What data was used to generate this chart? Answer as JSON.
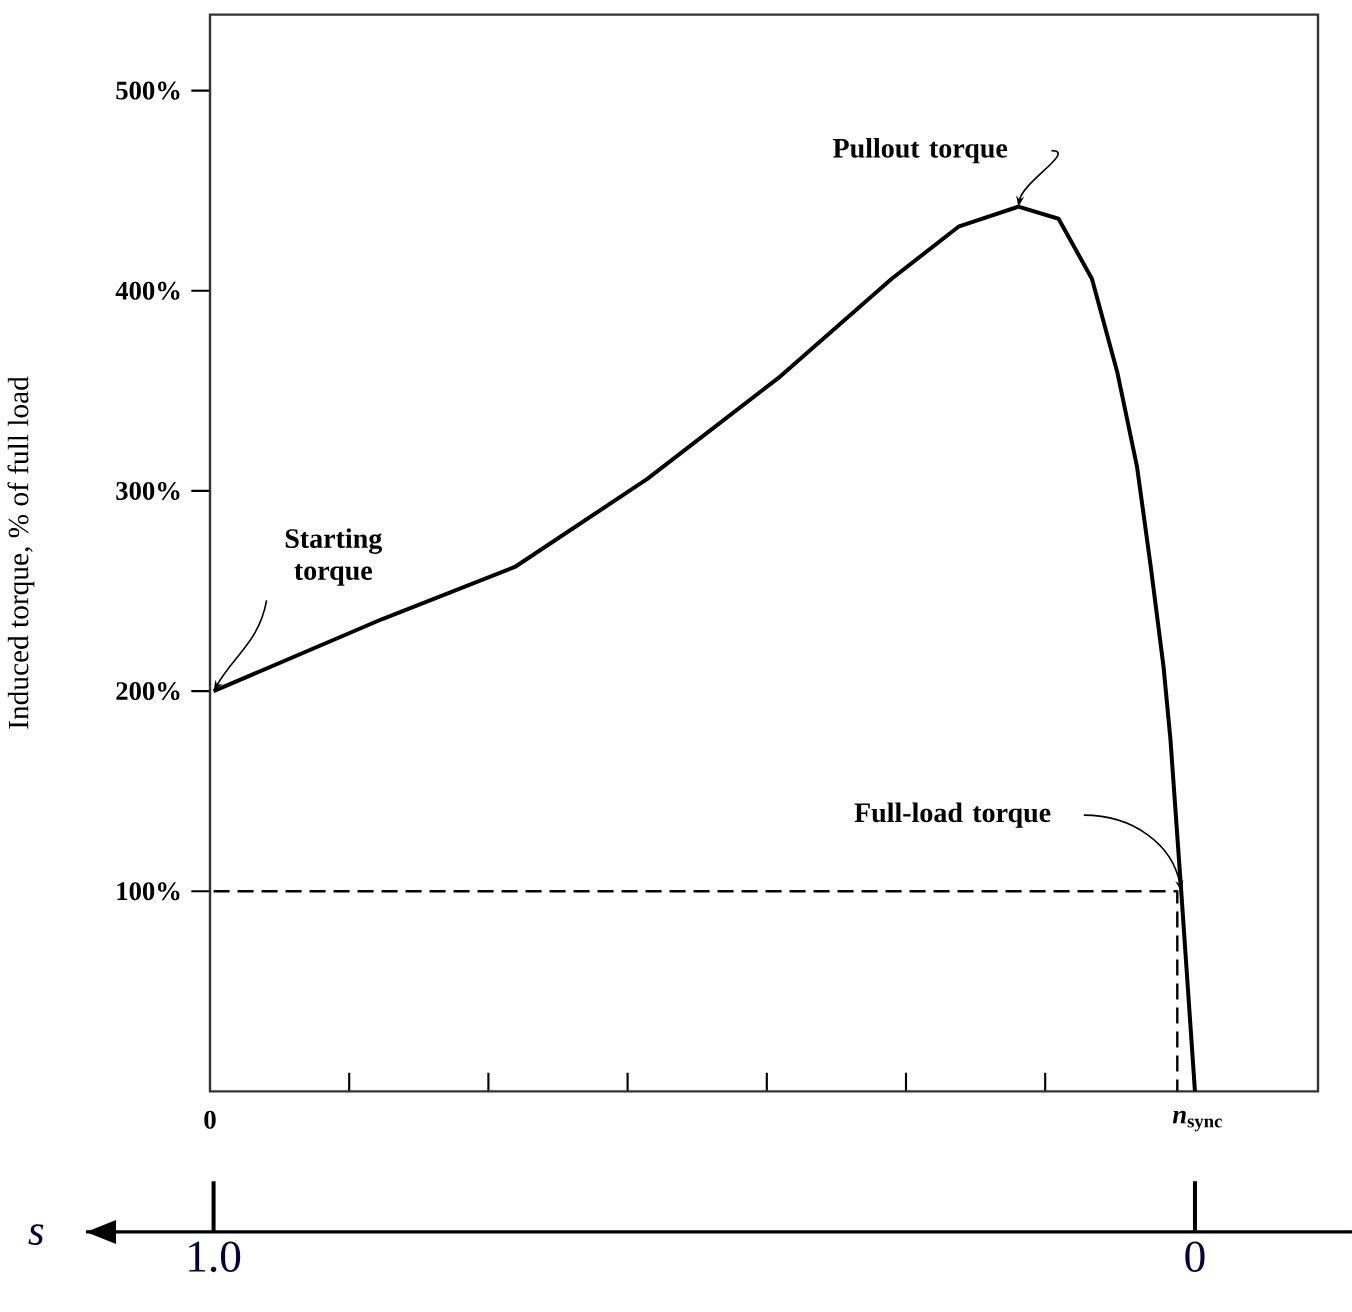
{
  "chart_data": {
    "type": "line",
    "ylabel": "Induced torque, % of full load",
    "xlabel": "s",
    "xlim": [
      1.13,
      -0.16
    ],
    "xticks": [
      {
        "value": 1,
        "label": "1.0"
      },
      0
    ],
    "ylim": [
      0,
      538
    ],
    "yticks": [
      {
        "value": 100,
        "label": "100%"
      },
      {
        "value": 200,
        "label": "200%"
      },
      {
        "value": 300,
        "label": "300%"
      },
      {
        "value": 400,
        "label": "400%"
      },
      {
        "value": 500,
        "label": "500%"
      }
    ],
    "marker": "none",
    "series": [
      {
        "color": "#000000",
        "x": [
          1,
          0.828,
          0.693,
          0.558,
          0.423,
          0.309,
          0.241,
          0.18,
          0.139,
          0.105,
          0.079,
          0.059,
          0.045,
          0.032,
          0.025,
          0.014,
          0
        ],
        "values": [
          200,
          236,
          262,
          306,
          357,
          406,
          432,
          442,
          436,
          406,
          359,
          312,
          262,
          212,
          176,
          100,
          0
        ]
      },
      {
        "color": "#000000",
        "line_style": "dashed",
        "x": [
          1,
          0.018,
          0.018
        ],
        "values": [
          100,
          100,
          0
        ]
      }
    ],
    "annotations": [
      {
        "text": "Starting torque",
        "x": 1,
        "y": 200
      },
      {
        "text": "Pullout torque",
        "x": 0.18,
        "y": 442
      },
      {
        "text": "Full-load torque",
        "x": 0.014,
        "y": 100
      },
      "0",
      "*n*$_{sync}$"
    ]
  }
}
